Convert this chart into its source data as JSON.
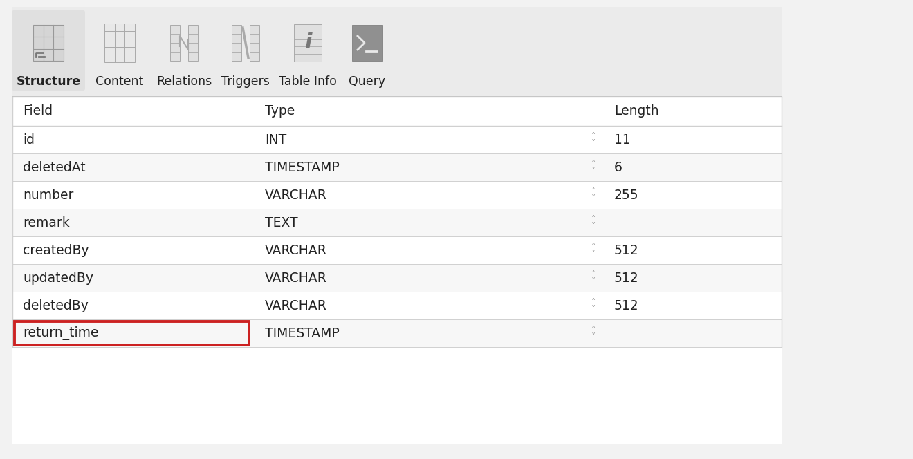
{
  "background_color": "#f2f2f2",
  "table_bg": "#ffffff",
  "toolbar_bg": "#ebebeb",
  "toolbar_items": [
    "Structure",
    "Content",
    "Relations",
    "Triggers",
    "Table Info",
    "Query"
  ],
  "header_row": [
    "Field",
    "Type",
    "Length"
  ],
  "rows": [
    {
      "field": "id",
      "type": "INT",
      "length": "11"
    },
    {
      "field": "deletedAt",
      "type": "TIMESTAMP",
      "length": "6"
    },
    {
      "field": "number",
      "type": "VARCHAR",
      "length": "255"
    },
    {
      "field": "remark",
      "type": "TEXT",
      "length": ""
    },
    {
      "field": "createdBy",
      "type": "VARCHAR",
      "length": "512"
    },
    {
      "field": "updatedBy",
      "type": "VARCHAR",
      "length": "512"
    },
    {
      "field": "deletedBy",
      "type": "VARCHAR",
      "length": "512"
    },
    {
      "field": "return_time",
      "type": "TIMESTAMP",
      "length": ""
    }
  ],
  "highlight_row_index": 7,
  "highlight_color": "#cc2222",
  "row_colors": [
    "#ffffff",
    "#f7f7f7"
  ],
  "header_bg": "#ffffff",
  "text_color": "#222222",
  "gray_text": "#888888",
  "divider_color": "#d0d0d0",
  "toolbar_border": "#c0c0c0",
  "active_bg": "#e0e0e0",
  "icon_color": "#888888",
  "font_size_data": 13.5,
  "font_size_header": 13.5,
  "font_size_toolbar": 12.5
}
